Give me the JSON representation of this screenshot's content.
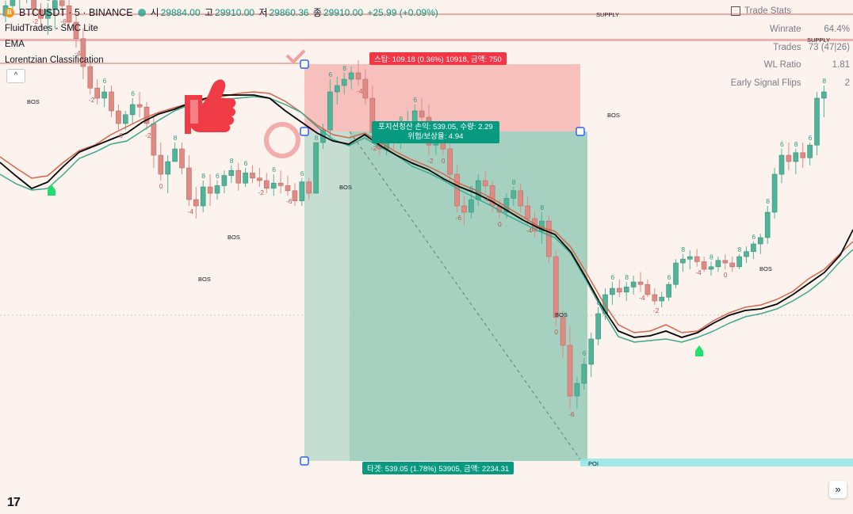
{
  "header": {
    "symbol": "BTCUSDT · 5 · BINANCE",
    "coin_glyph": "B",
    "ohlc": [
      {
        "k": "시",
        "v": "29884.00"
      },
      {
        "k": "고",
        "v": "29910.00"
      },
      {
        "k": "저",
        "v": "29860.36"
      },
      {
        "k": "종",
        "v": "29910.00"
      }
    ],
    "change": "+25.99 (+0.09%)"
  },
  "indicators": [
    "FluidTrades - SMC Lite",
    "EMA",
    "Lorentzian Classification"
  ],
  "collapse_glyph": "^",
  "stats": {
    "title": "Trade Stats",
    "rows": [
      {
        "label": "Winrate",
        "value": "64.4%"
      },
      {
        "label": "Trades",
        "value": "73 (47|26)"
      },
      {
        "label": "WL Ratio",
        "value": "1.81"
      },
      {
        "label": "Early Signal Flips",
        "value": "2"
      }
    ]
  },
  "position": {
    "stop_label": "스탑: 109.18 (0.36%) 10918, 금액: 750",
    "close_line1": "포지션청산 손익: 539.05, 수량: 2.29",
    "close_line2": "위험/보상율: 4.94",
    "target_label": "타겟: 539.05 (1.78%) 53905, 금액: 2234.31"
  },
  "logo": "17",
  "scroll_glyph": "»",
  "colors": {
    "background": "#fcf3ee",
    "bull": "#4fb49a",
    "bear": "#e08a84",
    "ema": "#000000",
    "line_red": "#d4664a",
    "line_teal": "#3aa88f",
    "stop_zone": "#f7b6b3",
    "target_zone": "#7fc8b0"
  },
  "chart_data": {
    "type": "candlestick",
    "series": [
      {
        "name": "price",
        "values": [
          [
            250,
            262,
            245,
            258
          ],
          [
            258,
            270,
            252,
            265
          ],
          [
            265,
            275,
            255,
            268
          ],
          [
            268,
            280,
            260,
            275
          ],
          [
            275,
            282,
            250,
            255
          ],
          [
            255,
            260,
            240,
            248
          ],
          [
            248,
            260,
            235,
            255
          ],
          [
            255,
            265,
            240,
            262
          ],
          [
            262,
            270,
            250,
            258
          ],
          [
            258,
            265,
            240,
            245
          ],
          [
            245,
            250,
            225,
            232
          ],
          [
            232,
            240,
            200,
            210
          ],
          [
            210,
            215,
            188,
            193
          ],
          [
            193,
            200,
            180,
            185
          ],
          [
            185,
            195,
            178,
            190
          ],
          [
            190,
            195,
            170,
            175
          ],
          [
            175,
            180,
            160,
            165
          ],
          [
            165,
            175,
            160,
            172
          ],
          [
            172,
            185,
            165,
            180
          ],
          [
            180,
            190,
            170,
            178
          ],
          [
            178,
            182,
            160,
            165
          ],
          [
            165,
            170,
            130,
            140
          ],
          [
            140,
            150,
            120,
            125
          ],
          [
            125,
            140,
            110,
            135
          ],
          [
            135,
            150,
            140,
            145
          ],
          [
            145,
            150,
            125,
            130
          ],
          [
            130,
            140,
            100,
            105
          ],
          [
            105,
            115,
            90,
            100
          ],
          [
            100,
            120,
            95,
            115
          ],
          [
            115,
            125,
            100,
            110
          ],
          [
            110,
            120,
            105,
            116
          ],
          [
            116,
            128,
            110,
            124
          ],
          [
            124,
            132,
            118,
            128
          ],
          [
            128,
            134,
            112,
            118
          ],
          [
            118,
            130,
            115,
            126
          ],
          [
            126,
            132,
            118,
            122
          ],
          [
            122,
            130,
            115,
            120
          ],
          [
            120,
            126,
            110,
            114
          ],
          [
            114,
            125,
            108,
            118
          ],
          [
            118,
            128,
            110,
            116
          ],
          [
            116,
            124,
            108,
            112
          ],
          [
            112,
            118,
            100,
            104
          ],
          [
            104,
            122,
            100,
            119
          ],
          [
            119,
            122,
            105,
            110
          ],
          [
            110,
            118,
            140,
            150
          ],
          [
            150,
            165,
            145,
            160
          ],
          [
            160,
            200,
            155,
            190
          ],
          [
            190,
            202,
            180,
            195
          ],
          [
            195,
            205,
            188,
            200
          ],
          [
            200,
            210,
            192,
            205
          ],
          [
            205,
            215,
            195,
            200
          ],
          [
            200,
            208,
            180,
            185
          ],
          [
            185,
            195,
            150,
            158
          ],
          [
            158,
            165,
            140,
            145
          ],
          [
            145,
            160,
            140,
            155
          ],
          [
            155,
            165,
            145,
            150
          ],
          [
            150,
            165,
            145,
            160
          ],
          [
            160,
            175,
            150,
            165
          ],
          [
            165,
            180,
            158,
            175
          ],
          [
            175,
            185,
            165,
            170
          ],
          [
            170,
            180,
            140,
            148
          ],
          [
            148,
            160,
            140,
            152
          ],
          [
            152,
            160,
            140,
            145
          ],
          [
            145,
            150,
            120,
            125
          ],
          [
            125,
            132,
            95,
            100
          ],
          [
            100,
            108,
            85,
            95
          ],
          [
            95,
            110,
            90,
            105
          ],
          [
            105,
            125,
            100,
            120
          ],
          [
            120,
            128,
            110,
            116
          ],
          [
            116,
            120,
            95,
            100
          ],
          [
            100,
            105,
            90,
            95
          ],
          [
            95,
            110,
            90,
            106
          ],
          [
            106,
            115,
            100,
            112
          ],
          [
            112,
            118,
            95,
            100
          ],
          [
            100,
            108,
            85,
            90
          ],
          [
            90,
            96,
            75,
            80
          ],
          [
            80,
            95,
            70,
            88
          ],
          [
            88,
            92,
            55,
            60
          ],
          [
            60,
            65,
            5,
            12
          ],
          [
            12,
            18,
            -20,
            -10
          ],
          [
            -10,
            5,
            -60,
            -50
          ],
          [
            -50,
            -35,
            -60,
            -40
          ],
          [
            -40,
            -20,
            -45,
            -25
          ],
          [
            -25,
            0,
            -35,
            -5
          ],
          [
            -5,
            20,
            -10,
            15
          ],
          [
            15,
            35,
            10,
            30
          ],
          [
            30,
            40,
            22,
            35
          ],
          [
            35,
            42,
            28,
            32
          ],
          [
            32,
            40,
            25,
            36
          ],
          [
            36,
            45,
            30,
            40
          ],
          [
            40,
            48,
            32,
            38
          ],
          [
            38,
            42,
            28,
            30
          ],
          [
            30,
            35,
            22,
            25
          ],
          [
            25,
            32,
            20,
            28
          ],
          [
            28,
            40,
            25,
            38
          ],
          [
            38,
            58,
            35,
            55
          ],
          [
            55,
            62,
            48,
            58
          ],
          [
            58,
            65,
            50,
            60
          ],
          [
            60,
            66,
            52,
            56
          ],
          [
            56,
            60,
            48,
            50
          ],
          [
            50,
            56,
            45,
            52
          ],
          [
            52,
            60,
            48,
            57
          ],
          [
            57,
            62,
            50,
            55
          ],
          [
            55,
            60,
            48,
            52
          ],
          [
            52,
            62,
            50,
            60
          ],
          [
            60,
            68,
            55,
            64
          ],
          [
            64,
            72,
            58,
            70
          ],
          [
            70,
            78,
            62,
            75
          ],
          [
            75,
            100,
            70,
            95
          ],
          [
            95,
            130,
            90,
            125
          ],
          [
            125,
            145,
            118,
            140
          ],
          [
            140,
            150,
            128,
            135
          ],
          [
            135,
            145,
            125,
            142
          ],
          [
            142,
            150,
            130,
            138
          ],
          [
            138,
            150,
            132,
            148
          ],
          [
            148,
            190,
            140,
            185
          ],
          [
            185,
            195,
            170,
            190
          ]
        ]
      }
    ],
    "annotations": [
      "BOS",
      "BOS",
      "BOS",
      "BOS",
      "BOS",
      "BOS",
      "BOS",
      "SUPPLY",
      "SUPPLY",
      "POI"
    ],
    "signal_digits": [
      "8",
      "6",
      "-6",
      "-4",
      "-2",
      "0",
      "-8",
      "4",
      "2"
    ],
    "legend": "none",
    "grid": false
  }
}
